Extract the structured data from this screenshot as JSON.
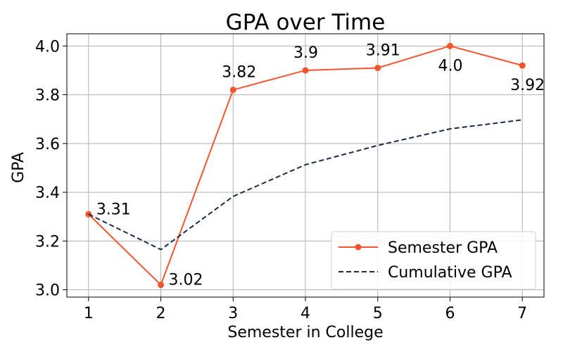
{
  "chart_data": {
    "type": "line",
    "title": "GPA over Time",
    "xlabel": "Semester in College",
    "ylabel": "GPA",
    "x": [
      1,
      2,
      3,
      4,
      5,
      6,
      7
    ],
    "xlim": [
      0.7,
      7.3
    ],
    "ylim": [
      2.97,
      4.05
    ],
    "yticks": [
      "3.0",
      "3.2",
      "3.4",
      "3.6",
      "3.8",
      "4.0"
    ],
    "ytick_values": [
      3.0,
      3.2,
      3.4,
      3.6,
      3.8,
      4.0
    ],
    "grid": true,
    "legend_position": "bottom-right",
    "series": [
      {
        "name": "Semester GPA",
        "values": [
          3.31,
          3.02,
          3.82,
          3.9,
          3.91,
          4.0,
          3.92
        ],
        "labels": [
          "3.31",
          "3.02",
          "3.82",
          "3.9",
          "3.91",
          "4.0",
          "3.92"
        ],
        "color": "#f4552e",
        "style": "solid",
        "marker": "circle"
      },
      {
        "name": "Cumulative GPA",
        "values": [
          3.31,
          3.165,
          3.383,
          3.513,
          3.592,
          3.66,
          3.697
        ],
        "color": "#1b2a4a",
        "style": "dashed",
        "marker": "none"
      }
    ]
  }
}
